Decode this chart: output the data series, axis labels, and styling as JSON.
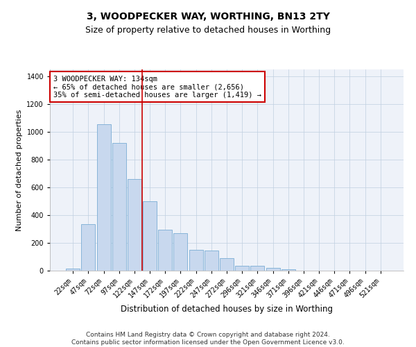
{
  "title": "3, WOODPECKER WAY, WORTHING, BN13 2TY",
  "subtitle": "Size of property relative to detached houses in Worthing",
  "xlabel": "Distribution of detached houses by size in Worthing",
  "ylabel": "Number of detached properties",
  "categories": [
    "22sqm",
    "47sqm",
    "72sqm",
    "97sqm",
    "122sqm",
    "147sqm",
    "172sqm",
    "197sqm",
    "222sqm",
    "247sqm",
    "272sqm",
    "296sqm",
    "321sqm",
    "346sqm",
    "371sqm",
    "396sqm",
    "421sqm",
    "446sqm",
    "471sqm",
    "496sqm",
    "521sqm"
  ],
  "values": [
    15,
    335,
    1055,
    920,
    660,
    500,
    295,
    270,
    150,
    145,
    90,
    35,
    35,
    20,
    10,
    0,
    0,
    0,
    0,
    0,
    0
  ],
  "bar_color": "#c8d8ee",
  "bar_edge_color": "#7aadd4",
  "vline_x": 4.48,
  "vline_color": "#cc0000",
  "annotation_text": "3 WOODPECKER WAY: 134sqm\n← 65% of detached houses are smaller (2,656)\n35% of semi-detached houses are larger (1,419) →",
  "annotation_box_facecolor": "#ffffff",
  "annotation_box_edgecolor": "#cc0000",
  "ylim": [
    0,
    1450
  ],
  "yticks": [
    0,
    200,
    400,
    600,
    800,
    1000,
    1200,
    1400
  ],
  "background_color": "#eef2f9",
  "grid_color": "#c0cfe0",
  "footer_text": "Contains HM Land Registry data © Crown copyright and database right 2024.\nContains public sector information licensed under the Open Government Licence v3.0.",
  "title_fontsize": 10,
  "subtitle_fontsize": 9,
  "annotation_fontsize": 7.5,
  "tick_fontsize": 7,
  "xlabel_fontsize": 8.5,
  "ylabel_fontsize": 8,
  "footer_fontsize": 6.5
}
